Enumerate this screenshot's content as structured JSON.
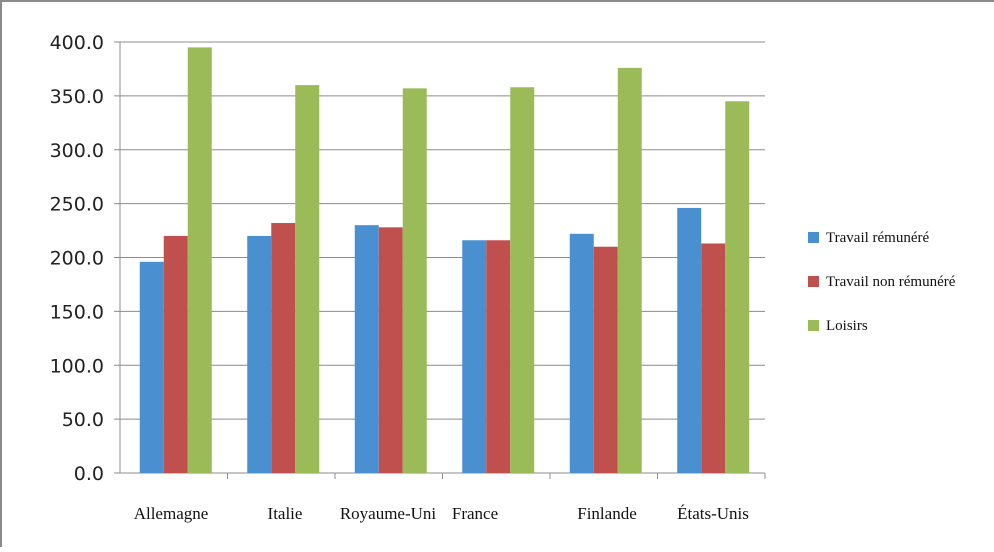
{
  "chart_data": {
    "type": "bar",
    "categories": [
      "Allemagne",
      "Italie",
      "Royaume-Uni",
      "France",
      "Finlande",
      "États-Unis"
    ],
    "series": [
      {
        "name": "Travail rémunéré",
        "color": "#4a8fcf",
        "values": [
          196,
          220,
          230,
          216,
          222,
          246
        ]
      },
      {
        "name": "Travail non rémunéré",
        "color": "#c0504d",
        "values": [
          220,
          232,
          228,
          216,
          210,
          213
        ]
      },
      {
        "name": "Loisirs",
        "color": "#9bbb59",
        "values": [
          395,
          360,
          357,
          358,
          376,
          345
        ]
      }
    ],
    "yticks": [
      "0.0",
      "50.0",
      "100.0",
      "150.0",
      "200.0",
      "250.0",
      "300.0",
      "350.0",
      "400.0"
    ],
    "ylim": [
      0,
      400
    ],
    "title": "",
    "xlabel": "",
    "ylabel": "",
    "grid": true,
    "legend_position": "right"
  }
}
